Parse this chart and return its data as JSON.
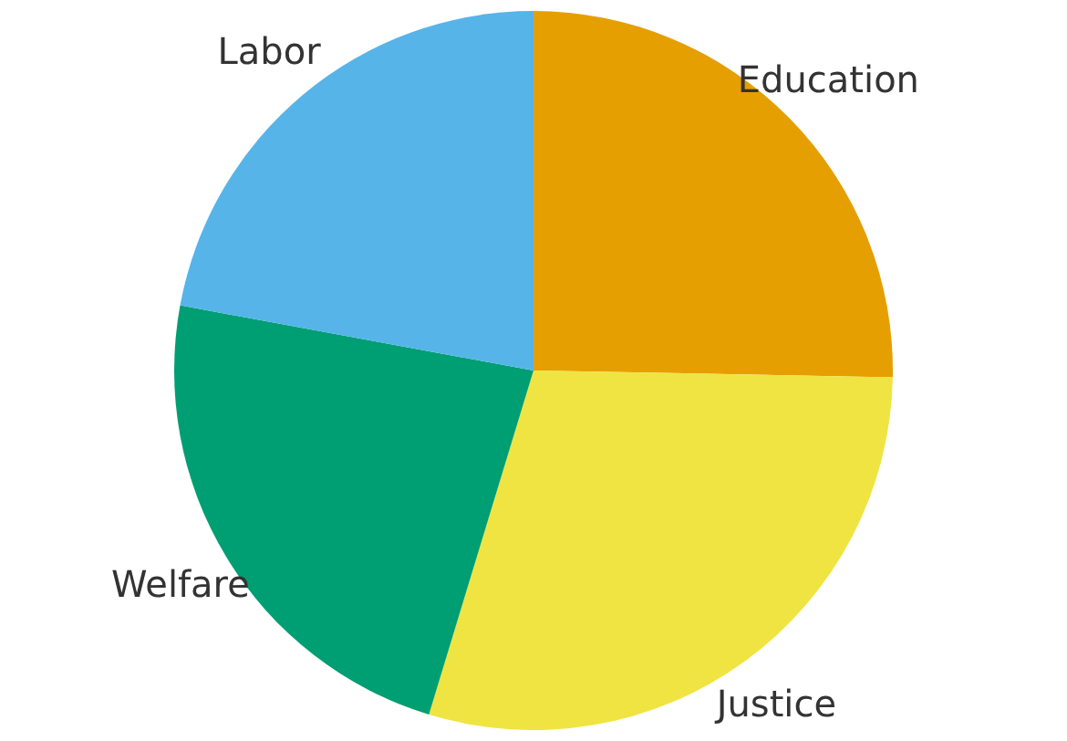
{
  "chart_data": {
    "type": "pie",
    "categories": [
      "Education",
      "Justice",
      "Welfare",
      "Labor"
    ],
    "values": [
      25.3,
      29.4,
      23.2,
      22.1
    ],
    "colors": [
      "#e69f00",
      "#f0e442",
      "#009e73",
      "#56b4e9"
    ]
  }
}
